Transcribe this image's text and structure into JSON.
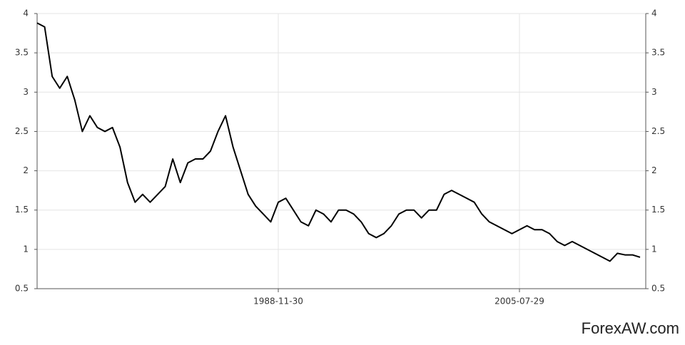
{
  "chart_data": {
    "type": "line",
    "categories": [
      null,
      null,
      null,
      null,
      null,
      null,
      null,
      null,
      null,
      null,
      null,
      null,
      null,
      null,
      null,
      null,
      null,
      null,
      null,
      null,
      null,
      null,
      null,
      null,
      null,
      null,
      null,
      null,
      null,
      null,
      null,
      null,
      "1988-11-30",
      null,
      null,
      null,
      null,
      null,
      null,
      null,
      null,
      null,
      null,
      null,
      null,
      null,
      null,
      null,
      null,
      null,
      null,
      null,
      null,
      null,
      null,
      null,
      null,
      null,
      null,
      null,
      null,
      null,
      null,
      null,
      "2005-07-29",
      null,
      null,
      null,
      null,
      null,
      null,
      null,
      null,
      null,
      null,
      null,
      null,
      null,
      null,
      null,
      null
    ],
    "values": [
      3.88,
      3.83,
      3.2,
      3.05,
      3.2,
      2.9,
      2.5,
      2.7,
      2.55,
      2.5,
      2.55,
      2.3,
      1.85,
      1.6,
      1.7,
      1.6,
      1.7,
      1.8,
      2.15,
      1.85,
      2.1,
      2.15,
      2.15,
      2.25,
      2.5,
      2.7,
      2.3,
      2.0,
      1.7,
      1.55,
      1.45,
      1.35,
      1.6,
      1.65,
      1.5,
      1.35,
      1.3,
      1.5,
      1.45,
      1.35,
      1.5,
      1.5,
      1.45,
      1.35,
      1.2,
      1.15,
      1.2,
      1.3,
      1.45,
      1.5,
      1.5,
      1.4,
      1.5,
      1.5,
      1.7,
      1.75,
      1.7,
      1.65,
      1.6,
      1.45,
      1.35,
      1.3,
      1.25,
      1.2,
      1.25,
      1.3,
      1.25,
      1.25,
      1.2,
      1.1,
      1.05,
      1.1,
      1.05,
      1.0,
      0.95,
      0.9,
      0.85,
      0.95,
      0.93,
      0.93,
      0.9
    ],
    "color": "#000000",
    "ylim": [
      0.5,
      4
    ],
    "yticks": [
      0.5,
      1,
      1.5,
      2,
      2.5,
      3,
      3.5,
      4
    ],
    "y2lim": [
      0.5,
      4
    ],
    "y2ticks": [
      0.5,
      1,
      1.5,
      2,
      2.5,
      3,
      3.5,
      4
    ],
    "grid": true
  },
  "watermark": "ForexAW.com"
}
